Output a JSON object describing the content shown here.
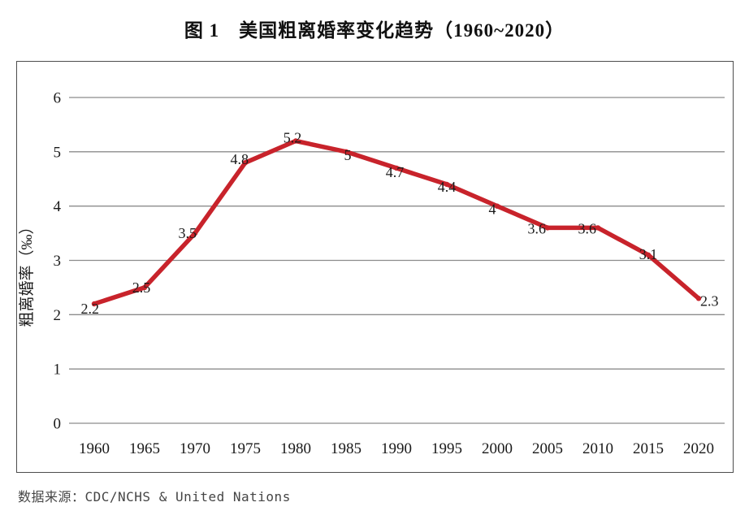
{
  "title": "图 1　美国粗离婚率变化趋势（1960~2020）",
  "source_note": "数据来源：CDC/NCHS & United Nations",
  "chart_data": {
    "type": "line",
    "title": "图 1　美国粗离婚率变化趋势（1960~2020）",
    "categories": [
      "1960",
      "1965",
      "1970",
      "1975",
      "1980",
      "1985",
      "1990",
      "1995",
      "2000",
      "2005",
      "2010",
      "2015",
      "2020"
    ],
    "values": [
      2.2,
      2.5,
      3.5,
      4.8,
      5.2,
      5,
      4.7,
      4.4,
      4,
      3.6,
      3.6,
      3.1,
      2.3
    ],
    "data_labels": [
      "2.2",
      "2.5",
      "3.5",
      "4.8",
      "5.2",
      "5",
      "4.7",
      "4.4",
      "4",
      "3.6",
      "3.6",
      "3.1",
      "2.3"
    ],
    "xlabel": "",
    "ylabel": "粗离婚率（‰）",
    "ylim": [
      0,
      6
    ],
    "yticks": [
      0,
      1,
      2,
      3,
      4,
      5,
      6
    ],
    "grid": "horizontal",
    "legend": "none",
    "line_color": "#C8232B",
    "gridline_color": "#8c8c8c",
    "text_color": "#1a1a1a"
  }
}
